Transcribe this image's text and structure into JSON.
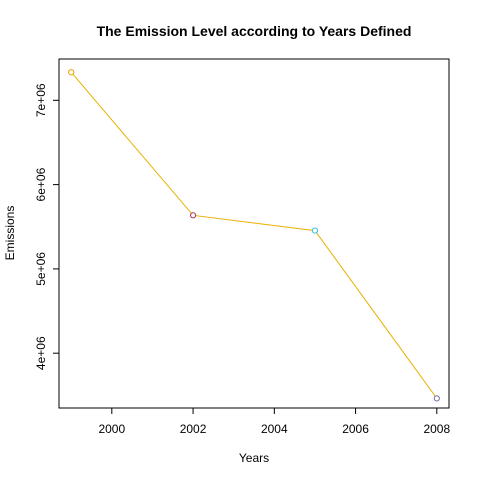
{
  "chart_data": {
    "type": "line",
    "title": "The Emission Level according to Years Defined",
    "xlabel": "Years",
    "ylabel": "Emissions",
    "xlim": [
      1998.7,
      2008.3
    ],
    "ylim": [
      3350000,
      7490000
    ],
    "grid": false,
    "x_ticks": [
      2000,
      2002,
      2004,
      2006,
      2008
    ],
    "x_tick_labels": [
      "2000",
      "2002",
      "2004",
      "2006",
      "2008"
    ],
    "y_ticks": [
      4000000,
      5000000,
      6000000,
      7000000
    ],
    "y_tick_labels": [
      "4e+06",
      "5e+06",
      "6e+06",
      "7e+06"
    ],
    "line_color": "#E8B100",
    "x": [
      1999,
      2002,
      2005,
      2008
    ],
    "y": [
      7332967,
      5635780,
      5454703,
      3464206
    ],
    "point_colors": [
      "#E6A000",
      "#B03050",
      "#33C3E6",
      "#7A6E9E"
    ]
  }
}
